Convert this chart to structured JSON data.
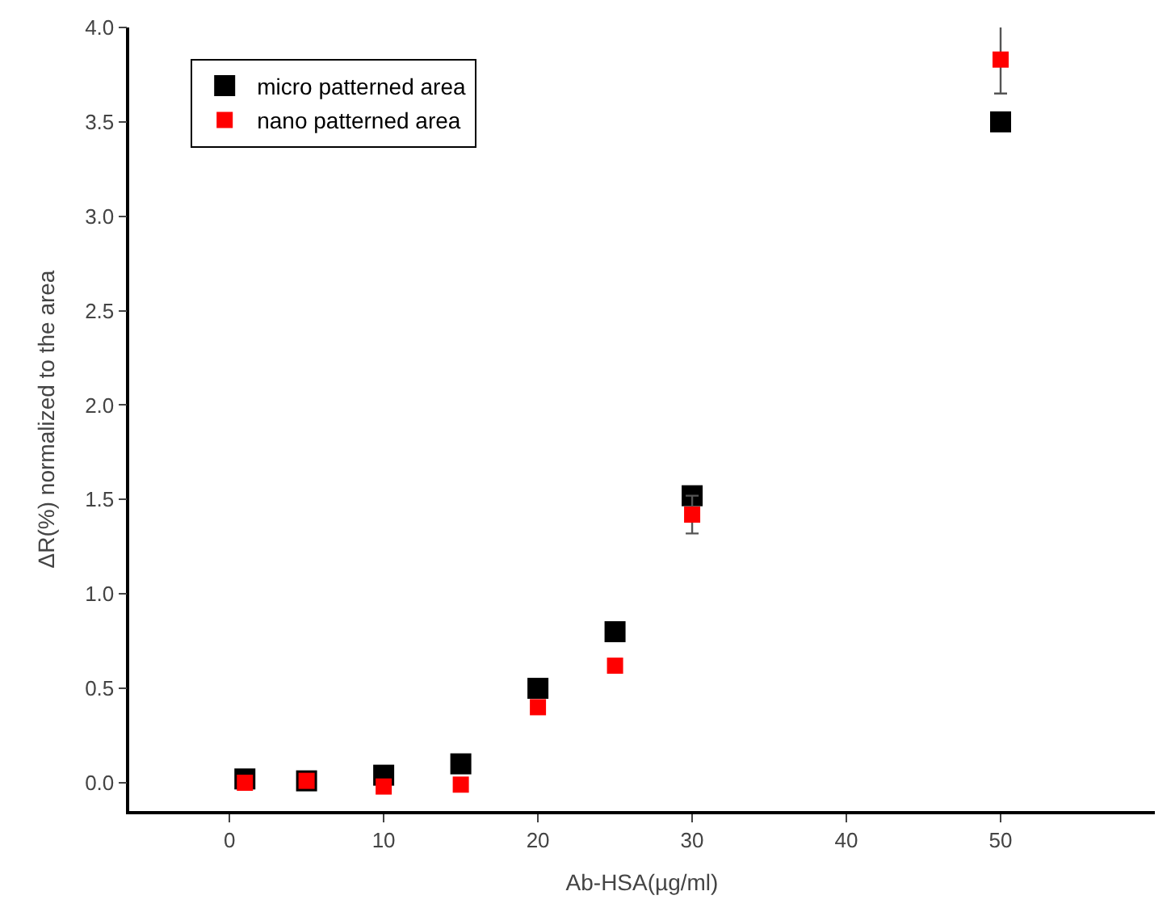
{
  "chart_data": {
    "type": "scatter",
    "xlabel": "Ab-HSA(µg/ml)",
    "ylabel": "ΔR(%) normalized to the area",
    "x": [
      1,
      5,
      10,
      15,
      20,
      25,
      30,
      50
    ],
    "series": [
      {
        "name": "micro patterned area",
        "color": "#000000",
        "values": [
          0.02,
          0.01,
          0.04,
          0.1,
          0.5,
          0.8,
          1.52,
          3.5
        ]
      },
      {
        "name": "nano patterned area",
        "color": "#ff0000",
        "values": [
          0.0,
          0.01,
          -0.02,
          -0.01,
          0.4,
          0.62,
          1.42,
          3.83
        ],
        "errors": [
          null,
          null,
          null,
          null,
          null,
          null,
          0.1,
          0.18
        ]
      }
    ],
    "xlim": [
      -6.5,
      60
    ],
    "xticks": [
      0,
      10,
      20,
      30,
      40,
      50
    ],
    "ylim": [
      -0.15,
      4.0
    ],
    "yticks": [
      {
        "value": 0,
        "label": "0.0"
      },
      0.5,
      {
        "value": 1,
        "label": "1.0"
      },
      1.5,
      {
        "value": 2,
        "label": "2.0"
      },
      2.5,
      {
        "value": 3,
        "label": "3.0"
      },
      3.5,
      {
        "value": 4,
        "label": "4.0"
      }
    ],
    "marker": "square",
    "legend": "top left"
  }
}
